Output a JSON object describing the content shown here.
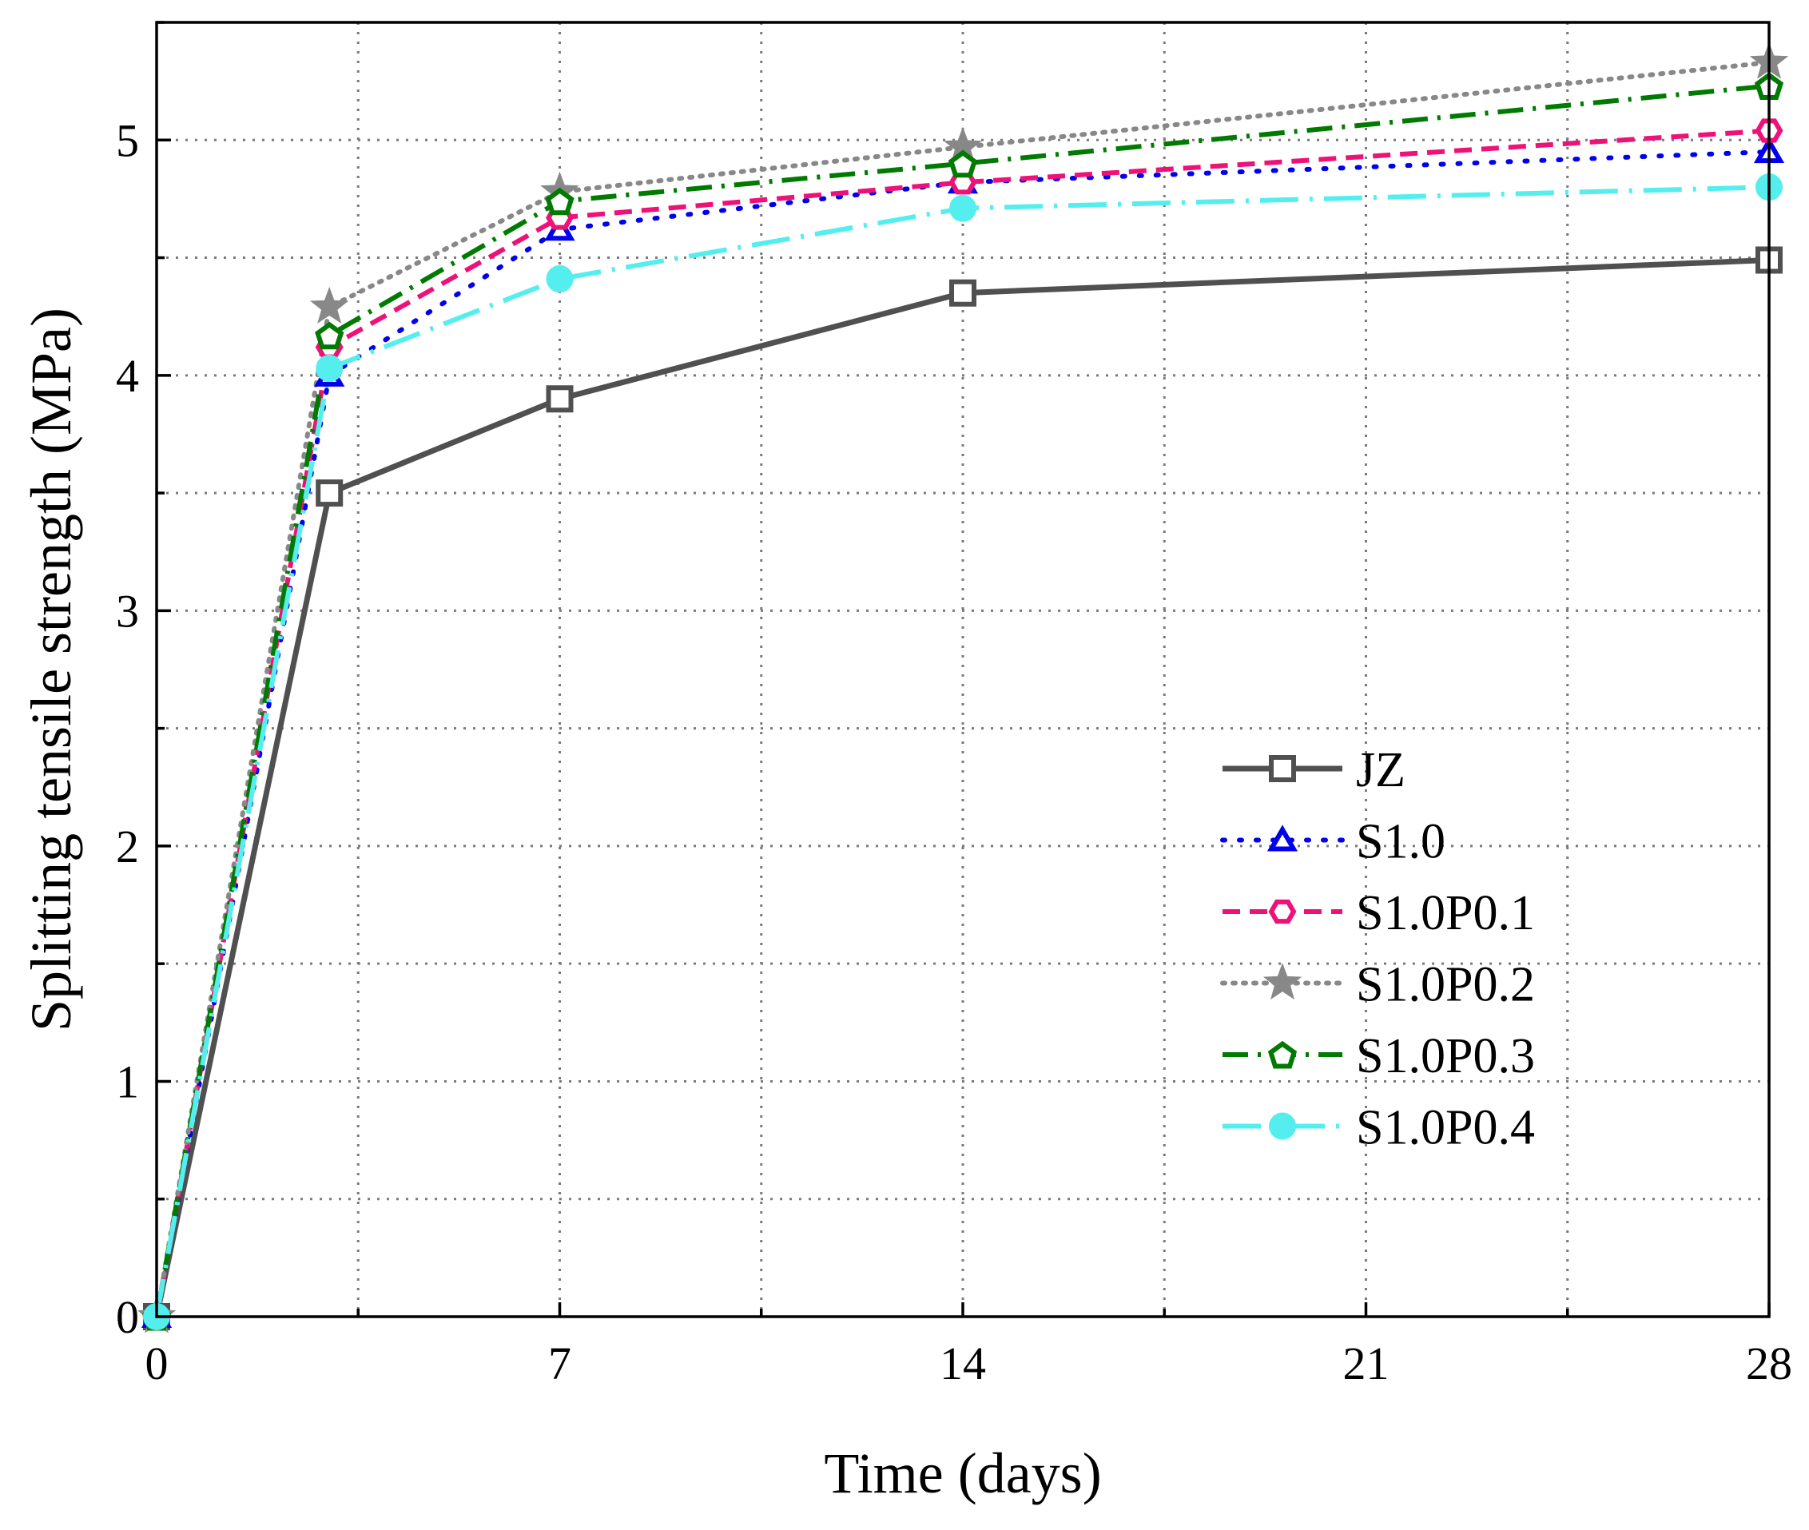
{
  "chart_data": {
    "type": "line",
    "title": "",
    "xlabel": "Time (days)",
    "ylabel": "Splitting tensile strength (MPa)",
    "xlim": [
      0,
      28
    ],
    "ylim": [
      0,
      5.5
    ],
    "xticks": [
      0,
      7,
      14,
      21,
      28
    ],
    "yticks": [
      0,
      1,
      2,
      3,
      4,
      5
    ],
    "grid": true,
    "legend_position": "right-middle",
    "x": [
      0,
      3,
      7,
      14,
      28
    ],
    "series": [
      {
        "name": "JZ",
        "values": [
          0,
          3.5,
          3.9,
          4.35,
          4.49
        ],
        "color": "#505050",
        "dash": "solid",
        "marker": "square"
      },
      {
        "name": "S1.0",
        "values": [
          0,
          4.0,
          4.62,
          4.82,
          4.95
        ],
        "color": "#0000ee",
        "dash": "dot",
        "marker": "triangle"
      },
      {
        "name": "S1.0P0.1",
        "values": [
          0,
          4.12,
          4.67,
          4.82,
          5.04
        ],
        "color": "#ee1177",
        "dash": "dash",
        "marker": "hexagon"
      },
      {
        "name": "S1.0P0.2",
        "values": [
          0,
          4.29,
          4.78,
          4.97,
          5.33
        ],
        "color": "#888888",
        "dash": "shortdot",
        "marker": "star"
      },
      {
        "name": "S1.0P0.3",
        "values": [
          0,
          4.17,
          4.74,
          4.9,
          5.23
        ],
        "color": "#007a00",
        "dash": "dashdot",
        "marker": "pentagon"
      },
      {
        "name": "S1.0P0.4",
        "values": [
          0,
          4.03,
          4.41,
          4.71,
          4.8
        ],
        "color": "#55eeee",
        "dash": "longdashdot",
        "marker": "circle"
      }
    ]
  }
}
